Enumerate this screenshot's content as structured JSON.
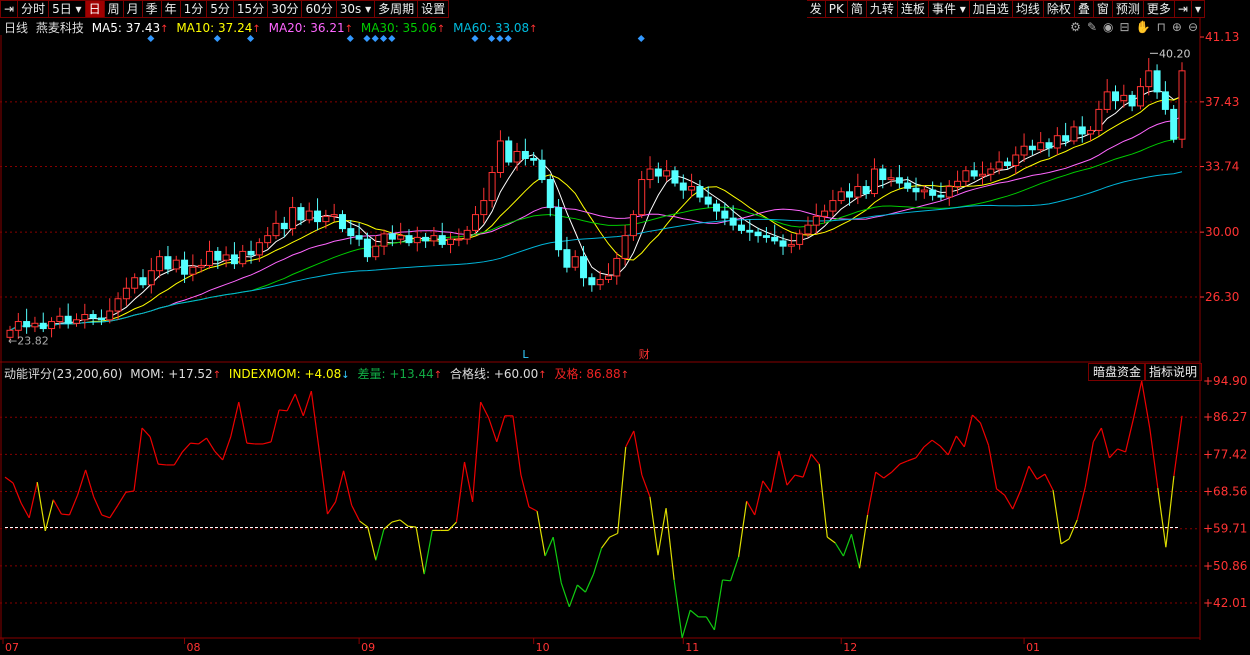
{
  "toolbar": {
    "left": [
      "分时",
      "5日",
      "日",
      "周",
      "月",
      "季",
      "年",
      "1分",
      "5分",
      "15分",
      "30分",
      "60分",
      "30s",
      "多周期",
      "设置"
    ],
    "active": "日",
    "right": [
      "发",
      "PK",
      "简",
      "九转",
      "连板",
      "事件",
      "加自选",
      "均线",
      "除权",
      "叠",
      "窗",
      "预测",
      "更多"
    ]
  },
  "header": {
    "period": "日线",
    "stock": "燕麦科技",
    "ma5": "MA5: 37.43",
    "ma10": "MA10: 37.24",
    "ma20": "MA20: 36.21",
    "ma30": "MA30: 35.06",
    "ma60": "MA60: 33.08"
  },
  "icons": [
    "gear-icon",
    "pen-icon",
    "eye-icon",
    "basket-icon",
    "hand-icon",
    "lock-icon",
    "zoom-in-icon",
    "zoom-out-icon"
  ],
  "colors": {
    "up": "#ff3333",
    "down": "#54ffff",
    "ma5": "#ffffff",
    "ma10": "#ffff00",
    "ma20": "#ff66ff",
    "ma30": "#00cc00",
    "ma60": "#00b4d8",
    "grid": "#880000",
    "axis": "#ff3333",
    "marker": "#3399ff"
  },
  "indicator": {
    "title": "动能评分(23,200,60)",
    "mom": "MOM: +17.52",
    "indexmom": "INDEXMOM: +4.08",
    "diff": "差量: +13.44",
    "pass": "合格线: +60.00",
    "excellent": "及格: 86.88",
    "buttons": [
      "暗盘资金",
      "指标说明"
    ]
  },
  "chart_data": [
    {
      "type": "candlestick",
      "price_ticks": [
        "41.13",
        "37.43",
        "33.74",
        "30.00",
        "26.30"
      ],
      "ylim": [
        22.5,
        41.13
      ],
      "high_label": "40.20",
      "low_label": "23.82",
      "months": [
        {
          "label": "07",
          "index": 0
        },
        {
          "label": "08",
          "index": 21
        },
        {
          "label": "09",
          "index": 42
        },
        {
          "label": "10",
          "index": 63
        },
        {
          "label": "11",
          "index": 81
        },
        {
          "label": "12",
          "index": 100
        },
        {
          "label": "01",
          "index": 122
        }
      ],
      "event_markers": [
        17,
        25,
        29,
        41,
        43,
        44,
        45,
        46,
        56,
        58,
        59,
        60,
        76
      ],
      "labels": [
        {
          "text": "L",
          "index": 62
        },
        {
          "text": "财",
          "index": 76
        }
      ],
      "close": [
        24.4,
        24.9,
        24.6,
        24.8,
        24.5,
        24.9,
        25.2,
        24.8,
        25.0,
        25.3,
        25.1,
        25.0,
        25.5,
        26.2,
        26.8,
        27.4,
        27.0,
        27.8,
        28.6,
        27.9,
        28.4,
        27.6,
        28.0,
        28.1,
        28.9,
        28.4,
        28.7,
        28.2,
        28.9,
        28.7,
        29.4,
        29.8,
        30.5,
        30.2,
        31.4,
        30.7,
        31.2,
        30.6,
        30.9,
        31.0,
        30.2,
        29.8,
        29.6,
        28.6,
        29.2,
        29.9,
        29.6,
        29.8,
        29.4,
        29.7,
        29.5,
        29.8,
        29.3,
        29.6,
        29.6,
        30.1,
        31.0,
        31.8,
        33.4,
        35.2,
        34.0,
        34.6,
        34.2,
        34.1,
        33.0,
        31.4,
        29.0,
        28.0,
        28.6,
        27.4,
        27.0,
        27.3,
        27.5,
        28.5,
        29.8,
        31.0,
        33.0,
        33.6,
        33.2,
        33.5,
        32.8,
        32.4,
        32.6,
        32.0,
        31.6,
        31.2,
        30.8,
        30.4,
        30.1,
        30.0,
        29.8,
        29.7,
        29.5,
        29.2,
        29.3,
        29.9,
        30.4,
        30.9,
        31.2,
        31.8,
        32.3,
        32.0,
        32.6,
        32.2,
        33.6,
        33.0,
        33.1,
        32.8,
        32.5,
        32.3,
        32.4,
        32.1,
        32.0,
        32.6,
        32.9,
        33.5,
        33.2,
        33.3,
        33.6,
        34.0,
        33.8,
        34.4,
        34.9,
        34.7,
        35.1,
        34.8,
        35.5,
        35.2,
        36.0,
        35.6,
        35.8,
        37.0,
        38.0,
        37.5,
        37.8,
        37.2,
        38.3,
        39.2,
        38.0,
        37.0,
        35.3,
        39.2
      ]
    },
    {
      "type": "line",
      "name": "MOM",
      "ticks": [
        "+94.90",
        "+86.27",
        "+77.42",
        "+68.56",
        "+59.71",
        "+50.86",
        "+42.01"
      ],
      "ylim": [
        33,
        94.9
      ],
      "threshold": 60,
      "values": [
        72,
        70.6,
        65.8,
        62.3,
        70.8,
        59.2,
        66.6,
        63.2,
        63,
        67.7,
        73.7,
        67.3,
        63,
        62.3,
        65.3,
        68.4,
        68.7,
        83.7,
        81.6,
        75.1,
        74.9,
        74.9,
        78,
        80.1,
        79.9,
        81.3,
        78.2,
        76.1,
        81.6,
        89.9,
        80.1,
        79.9,
        79.9,
        80.4,
        88,
        87.8,
        91.8,
        86.6,
        92.5,
        78,
        63.2,
        66.1,
        73.5,
        65.3,
        61.5,
        60.1,
        52.2,
        59.6,
        61.3,
        61.8,
        60.3,
        60.1,
        48.9,
        59.3,
        59.3,
        59.3,
        61.3,
        75.6,
        66.1,
        89.9,
        86.1,
        80.4,
        86.6,
        86.6,
        72.5,
        64.9,
        63.9,
        53.2,
        57.7,
        46.8,
        41.1,
        46.3,
        44.6,
        48.9,
        55.1,
        57.7,
        58.6,
        79.2,
        83,
        72.5,
        67.3,
        53.4,
        64.6,
        47.5,
        33.7,
        40.3,
        38.7,
        38.7,
        35.6,
        47.5,
        47.3,
        53,
        66.3,
        63,
        71.1,
        68.4,
        78.2,
        70.1,
        72.5,
        72,
        77.5,
        75.1,
        57.7,
        56.3,
        53.2,
        58.4,
        50.3,
        63,
        73.2,
        71.8,
        73.2,
        75.1,
        75.9,
        76.6,
        79.2,
        80.8,
        79.4,
        77.3,
        81.8,
        79.2,
        86.8,
        84.9,
        79.6,
        69.2,
        67.7,
        64.4,
        68.9,
        74.6,
        71.5,
        72.7,
        68.9,
        56.1,
        57.3,
        61.8,
        69.6,
        80.4,
        83.7,
        76.6,
        78.7,
        78,
        86.1,
        94.9,
        83.7,
        69.4,
        55.3,
        72.3,
        86.6
      ]
    }
  ]
}
